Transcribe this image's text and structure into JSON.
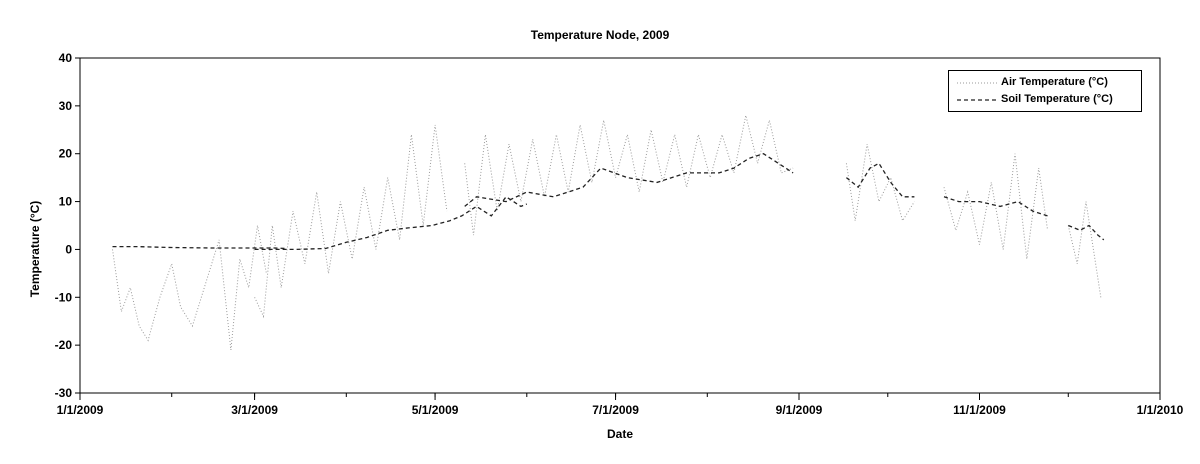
{
  "chart_data": {
    "type": "line",
    "title": "Temperature Node, 2009",
    "xlabel": "Date",
    "ylabel": "Temperature (°C)",
    "xlim": [
      "1/1/2009",
      "1/1/2010"
    ],
    "ylim": [
      -30,
      40
    ],
    "x_ticks": [
      "1/1/2009",
      "3/1/2009",
      "5/1/2009",
      "7/1/2009",
      "9/1/2009",
      "11/1/2009",
      "1/1/2010"
    ],
    "y_ticks": [
      -30,
      -20,
      -10,
      0,
      10,
      20,
      30,
      40
    ],
    "grid": false,
    "legend": "top-right",
    "series": [
      {
        "name": "Air Temperature (°C)",
        "style": "dotted",
        "color": "#9a9a9a",
        "points": [
          [
            "1/12/2009",
            0
          ],
          [
            "1/15/2009",
            -13
          ],
          [
            "1/18/2009",
            -8
          ],
          [
            "1/21/2009",
            -16
          ],
          [
            "1/24/2009",
            -19
          ],
          [
            "1/28/2009",
            -10
          ],
          [
            "2/1/2009",
            -3
          ],
          [
            "2/4/2009",
            -12
          ],
          [
            "2/8/2009",
            -16
          ],
          [
            "2/12/2009",
            -8
          ],
          [
            "2/17/2009",
            2
          ],
          [
            "2/21/2009",
            -21
          ],
          [
            "2/24/2009",
            -2
          ],
          [
            "2/27/2009",
            -8
          ],
          [
            "3/2/2009",
            5
          ],
          [
            "3/5/2009",
            -5
          ],
          null,
          [
            "3/1/2009",
            -10
          ],
          [
            "3/4/2009",
            -14
          ],
          [
            "3/7/2009",
            5
          ],
          [
            "3/10/2009",
            -8
          ],
          [
            "3/14/2009",
            8
          ],
          [
            "3/18/2009",
            -3
          ],
          [
            "3/22/2009",
            12
          ],
          [
            "3/26/2009",
            -5
          ],
          [
            "3/30/2009",
            10
          ],
          [
            "4/3/2009",
            -2
          ],
          [
            "4/7/2009",
            13
          ],
          [
            "4/11/2009",
            0
          ],
          [
            "4/15/2009",
            15
          ],
          [
            "4/19/2009",
            2
          ],
          [
            "4/23/2009",
            24
          ],
          [
            "4/27/2009",
            5
          ],
          [
            "5/1/2009",
            26
          ],
          [
            "5/5/2009",
            8
          ],
          null,
          [
            "5/11/2009",
            18
          ],
          [
            "5/14/2009",
            3
          ],
          [
            "5/18/2009",
            24
          ],
          [
            "5/22/2009",
            8
          ],
          [
            "5/26/2009",
            22
          ],
          [
            "5/30/2009",
            10
          ],
          [
            "6/3/2009",
            23
          ],
          [
            "6/7/2009",
            11
          ],
          [
            "6/11/2009",
            24
          ],
          [
            "6/15/2009",
            12
          ],
          [
            "6/19/2009",
            26
          ],
          [
            "6/23/2009",
            14
          ],
          [
            "6/27/2009",
            27
          ],
          [
            "7/1/2009",
            15
          ],
          [
            "7/5/2009",
            24
          ],
          [
            "7/9/2009",
            12
          ],
          [
            "7/13/2009",
            25
          ],
          [
            "7/17/2009",
            14
          ],
          [
            "7/21/2009",
            24
          ],
          [
            "7/25/2009",
            13
          ],
          [
            "7/29/2009",
            24
          ],
          [
            "8/2/2009",
            15
          ],
          [
            "8/6/2009",
            24
          ],
          [
            "8/10/2009",
            16
          ],
          [
            "8/14/2009",
            28
          ],
          [
            "8/18/2009",
            18
          ],
          [
            "8/22/2009",
            27
          ],
          [
            "8/26/2009",
            16
          ],
          [
            "8/30/2009",
            17
          ],
          null,
          [
            "9/17/2009",
            18
          ],
          [
            "9/20/2009",
            6
          ],
          [
            "9/24/2009",
            22
          ],
          [
            "9/28/2009",
            10
          ],
          [
            "10/2/2009",
            15
          ],
          [
            "10/6/2009",
            6
          ],
          [
            "10/10/2009",
            10
          ],
          null,
          [
            "10/20/2009",
            13
          ],
          [
            "10/24/2009",
            4
          ],
          [
            "10/28/2009",
            12
          ],
          [
            "11/1/2009",
            1
          ],
          [
            "11/5/2009",
            14
          ],
          [
            "11/9/2009",
            0
          ],
          [
            "11/13/2009",
            20
          ],
          [
            "11/17/2009",
            -2
          ],
          [
            "11/21/2009",
            17
          ],
          [
            "11/24/2009",
            4
          ],
          null,
          [
            "12/1/2009",
            5
          ],
          [
            "12/4/2009",
            -3
          ],
          [
            "12/7/2009",
            10
          ],
          [
            "12/10/2009",
            -2
          ],
          [
            "12/12/2009",
            -10
          ]
        ]
      },
      {
        "name": "Soil Temperature (°C)",
        "style": "dashed",
        "color": "#222222",
        "points": [
          [
            "1/12/2009",
            0.6
          ],
          [
            "1/20/2009",
            0.6
          ],
          [
            "2/1/2009",
            0.4
          ],
          [
            "2/15/2009",
            0.3
          ],
          [
            "3/1/2009",
            0.3
          ],
          [
            "3/8/2009",
            0.3
          ],
          [
            "3/12/2009",
            0.2
          ],
          null,
          [
            "3/1/2009",
            0
          ],
          [
            "3/15/2009",
            0
          ],
          [
            "3/25/2009",
            0.2
          ],
          [
            "4/1/2009",
            1.5
          ],
          [
            "4/8/2009",
            2.5
          ],
          [
            "4/15/2009",
            4
          ],
          [
            "4/22/2009",
            4.5
          ],
          [
            "4/30/2009",
            5
          ],
          [
            "5/6/2009",
            6
          ],
          [
            "5/10/2009",
            7
          ],
          [
            "5/15/2009",
            9
          ],
          [
            "5/20/2009",
            7
          ],
          [
            "5/25/2009",
            11
          ],
          [
            "5/30/2009",
            9
          ],
          [
            "6/1/2009",
            9.5
          ],
          null,
          [
            "5/11/2009",
            9
          ],
          [
            "5/15/2009",
            11
          ],
          [
            "5/25/2009",
            10
          ],
          [
            "6/1/2009",
            12
          ],
          [
            "6/10/2009",
            11
          ],
          [
            "6/20/2009",
            13
          ],
          [
            "6/26/2009",
            17
          ],
          [
            "7/5/2009",
            15
          ],
          [
            "7/15/2009",
            14
          ],
          [
            "7/25/2009",
            16
          ],
          [
            "8/5/2009",
            16
          ],
          [
            "8/10/2009",
            17
          ],
          [
            "8/15/2009",
            19
          ],
          [
            "8/20/2009",
            20
          ],
          [
            "8/25/2009",
            18
          ],
          [
            "8/30/2009",
            16
          ],
          null,
          [
            "9/17/2009",
            15
          ],
          [
            "9/21/2009",
            13
          ],
          [
            "9/25/2009",
            17
          ],
          [
            "9/28/2009",
            18
          ],
          [
            "10/2/2009",
            14
          ],
          [
            "10/6/2009",
            11
          ],
          [
            "10/10/2009",
            11
          ],
          null,
          [
            "10/20/2009",
            11
          ],
          [
            "10/25/2009",
            10
          ],
          [
            "11/1/2009",
            10
          ],
          [
            "11/8/2009",
            9
          ],
          [
            "11/14/2009",
            10
          ],
          [
            "11/19/2009",
            8
          ],
          [
            "11/24/2009",
            7
          ],
          null,
          [
            "12/1/2009",
            5
          ],
          [
            "12/5/2009",
            4
          ],
          [
            "12/8/2009",
            5
          ],
          [
            "12/11/2009",
            3
          ],
          [
            "12/13/2009",
            2
          ]
        ]
      }
    ]
  }
}
